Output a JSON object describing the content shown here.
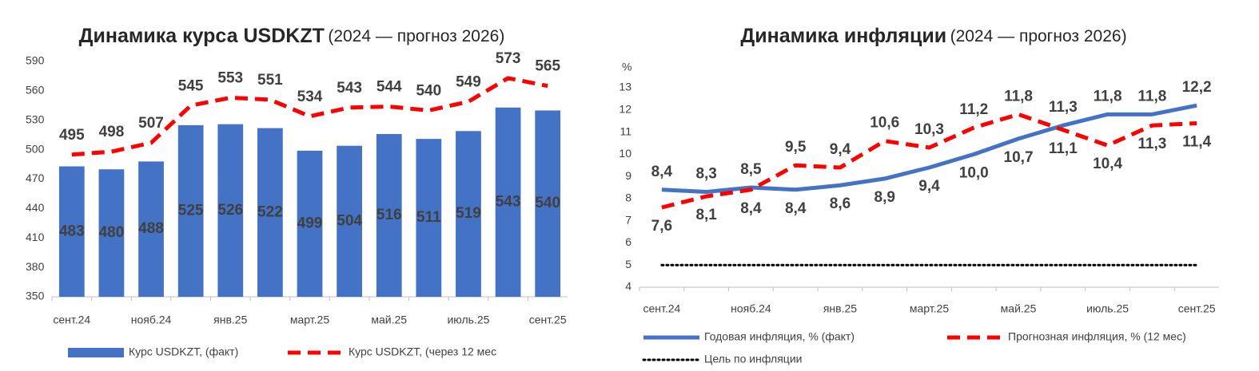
{
  "chart_data": [
    {
      "type": "combo",
      "title": "Динамика курса USDKZT",
      "subtitle": "(2024 — прогноз 2026)",
      "categories": [
        "сент.24",
        null,
        "нояб.24",
        null,
        "янв.25",
        null,
        "март.25",
        null,
        "май.25",
        null,
        "июль.25",
        null,
        "сент.25"
      ],
      "series": [
        {
          "name": "Курс USDKZT, (факт)",
          "type": "bar",
          "color": "#4472c4",
          "values": [
            483,
            480,
            488,
            525,
            526,
            522,
            499,
            504,
            516,
            511,
            519,
            543,
            540
          ]
        },
        {
          "name": "Курс USDKZT, (через 12 мес",
          "type": "line",
          "style": "dashed",
          "color": "#ff0000",
          "values": [
            495,
            498,
            507,
            545,
            553,
            551,
            534,
            543,
            544,
            540,
            549,
            573,
            565
          ]
        }
      ],
      "ylim": [
        350,
        590
      ],
      "yticks": [
        350,
        380,
        410,
        440,
        470,
        500,
        530,
        560,
        590
      ]
    },
    {
      "type": "line",
      "title": "Динамика инфляции",
      "subtitle": "(2024 — прогноз 2026)",
      "y_label": "%",
      "categories": [
        "сент.24",
        null,
        "нояб.24",
        null,
        "янв.25",
        null,
        "март.25",
        null,
        "май.25",
        null,
        "июль.25",
        null,
        "сент.25"
      ],
      "series": [
        {
          "name": "Годовая инфляция, % (факт)",
          "type": "line",
          "style": "solid",
          "color": "#4472c4",
          "values": [
            8.4,
            8.3,
            8.5,
            8.4,
            8.6,
            8.9,
            9.4,
            10.0,
            10.7,
            11.3,
            11.8,
            11.8,
            12.2
          ],
          "value_labels": [
            "8,4",
            "8,3",
            "8,5",
            "8,4",
            "8,6",
            "8,9",
            "9,4",
            "10,0",
            "10,7",
            "11,3",
            "11,8",
            "11,8",
            "12,2"
          ]
        },
        {
          "name": "Прогнозная инфляция, % (12 мес)",
          "type": "line",
          "style": "dashed",
          "color": "#ff0000",
          "values": [
            7.6,
            8.1,
            8.4,
            9.5,
            9.4,
            10.6,
            10.3,
            11.2,
            11.8,
            11.1,
            10.4,
            11.3,
            11.4
          ],
          "value_labels": [
            "7,6",
            "8,1",
            "8,4",
            "9,5",
            "9,4",
            "10,6",
            "10,3",
            "11,2",
            "11,8",
            "11,1",
            "10,4",
            "11,3",
            "11,4"
          ]
        },
        {
          "name": "Цель по инфляции",
          "type": "line",
          "style": "dotted",
          "color": "#000000",
          "values": [
            5,
            5,
            5,
            5,
            5,
            5,
            5,
            5,
            5,
            5,
            5,
            5,
            5
          ]
        }
      ],
      "ylim": [
        4,
        13
      ],
      "yticks": [
        4,
        5,
        6,
        7,
        8,
        9,
        10,
        11,
        12,
        13
      ]
    }
  ]
}
